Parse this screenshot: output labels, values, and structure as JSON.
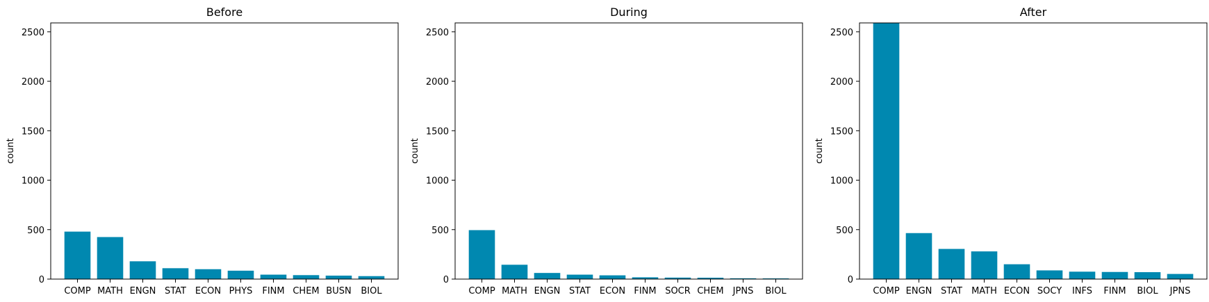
{
  "chart_data": [
    {
      "type": "bar",
      "title": "Before",
      "xlabel": "",
      "ylabel": "count",
      "categories": [
        "COMP",
        "MATH",
        "ENGN",
        "STAT",
        "ECON",
        "PHYS",
        "FINM",
        "CHEM",
        "BUSN",
        "BIOL"
      ],
      "values": [
        480,
        425,
        180,
        110,
        100,
        85,
        45,
        40,
        35,
        30
      ],
      "ylim": [
        0,
        2590
      ],
      "yticks": [
        0,
        500,
        1000,
        1500,
        2000,
        2500
      ],
      "grid": false,
      "bar_color": "#0088b0"
    },
    {
      "type": "bar",
      "title": "During",
      "xlabel": "",
      "ylabel": "count",
      "categories": [
        "COMP",
        "MATH",
        "ENGN",
        "STAT",
        "ECON",
        "FINM",
        "SOCR",
        "CHEM",
        "JPNS",
        "BIOL"
      ],
      "values": [
        495,
        145,
        62,
        45,
        38,
        18,
        15,
        14,
        8,
        7
      ],
      "ylim": [
        0,
        2590
      ],
      "yticks": [
        0,
        500,
        1000,
        1500,
        2000,
        2500
      ],
      "grid": false,
      "bar_color": "#0088b0"
    },
    {
      "type": "bar",
      "title": "After",
      "xlabel": "",
      "ylabel": "count",
      "categories": [
        "COMP",
        "ENGN",
        "STAT",
        "MATH",
        "ECON",
        "SOCY",
        "INFS",
        "FINM",
        "BIOL",
        "JPNS"
      ],
      "values": [
        2590,
        465,
        305,
        280,
        150,
        88,
        75,
        72,
        70,
        52
      ],
      "ylim": [
        0,
        2590
      ],
      "yticks": [
        0,
        500,
        1000,
        1500,
        2000,
        2500
      ],
      "grid": false,
      "bar_color": "#0088b0"
    }
  ]
}
